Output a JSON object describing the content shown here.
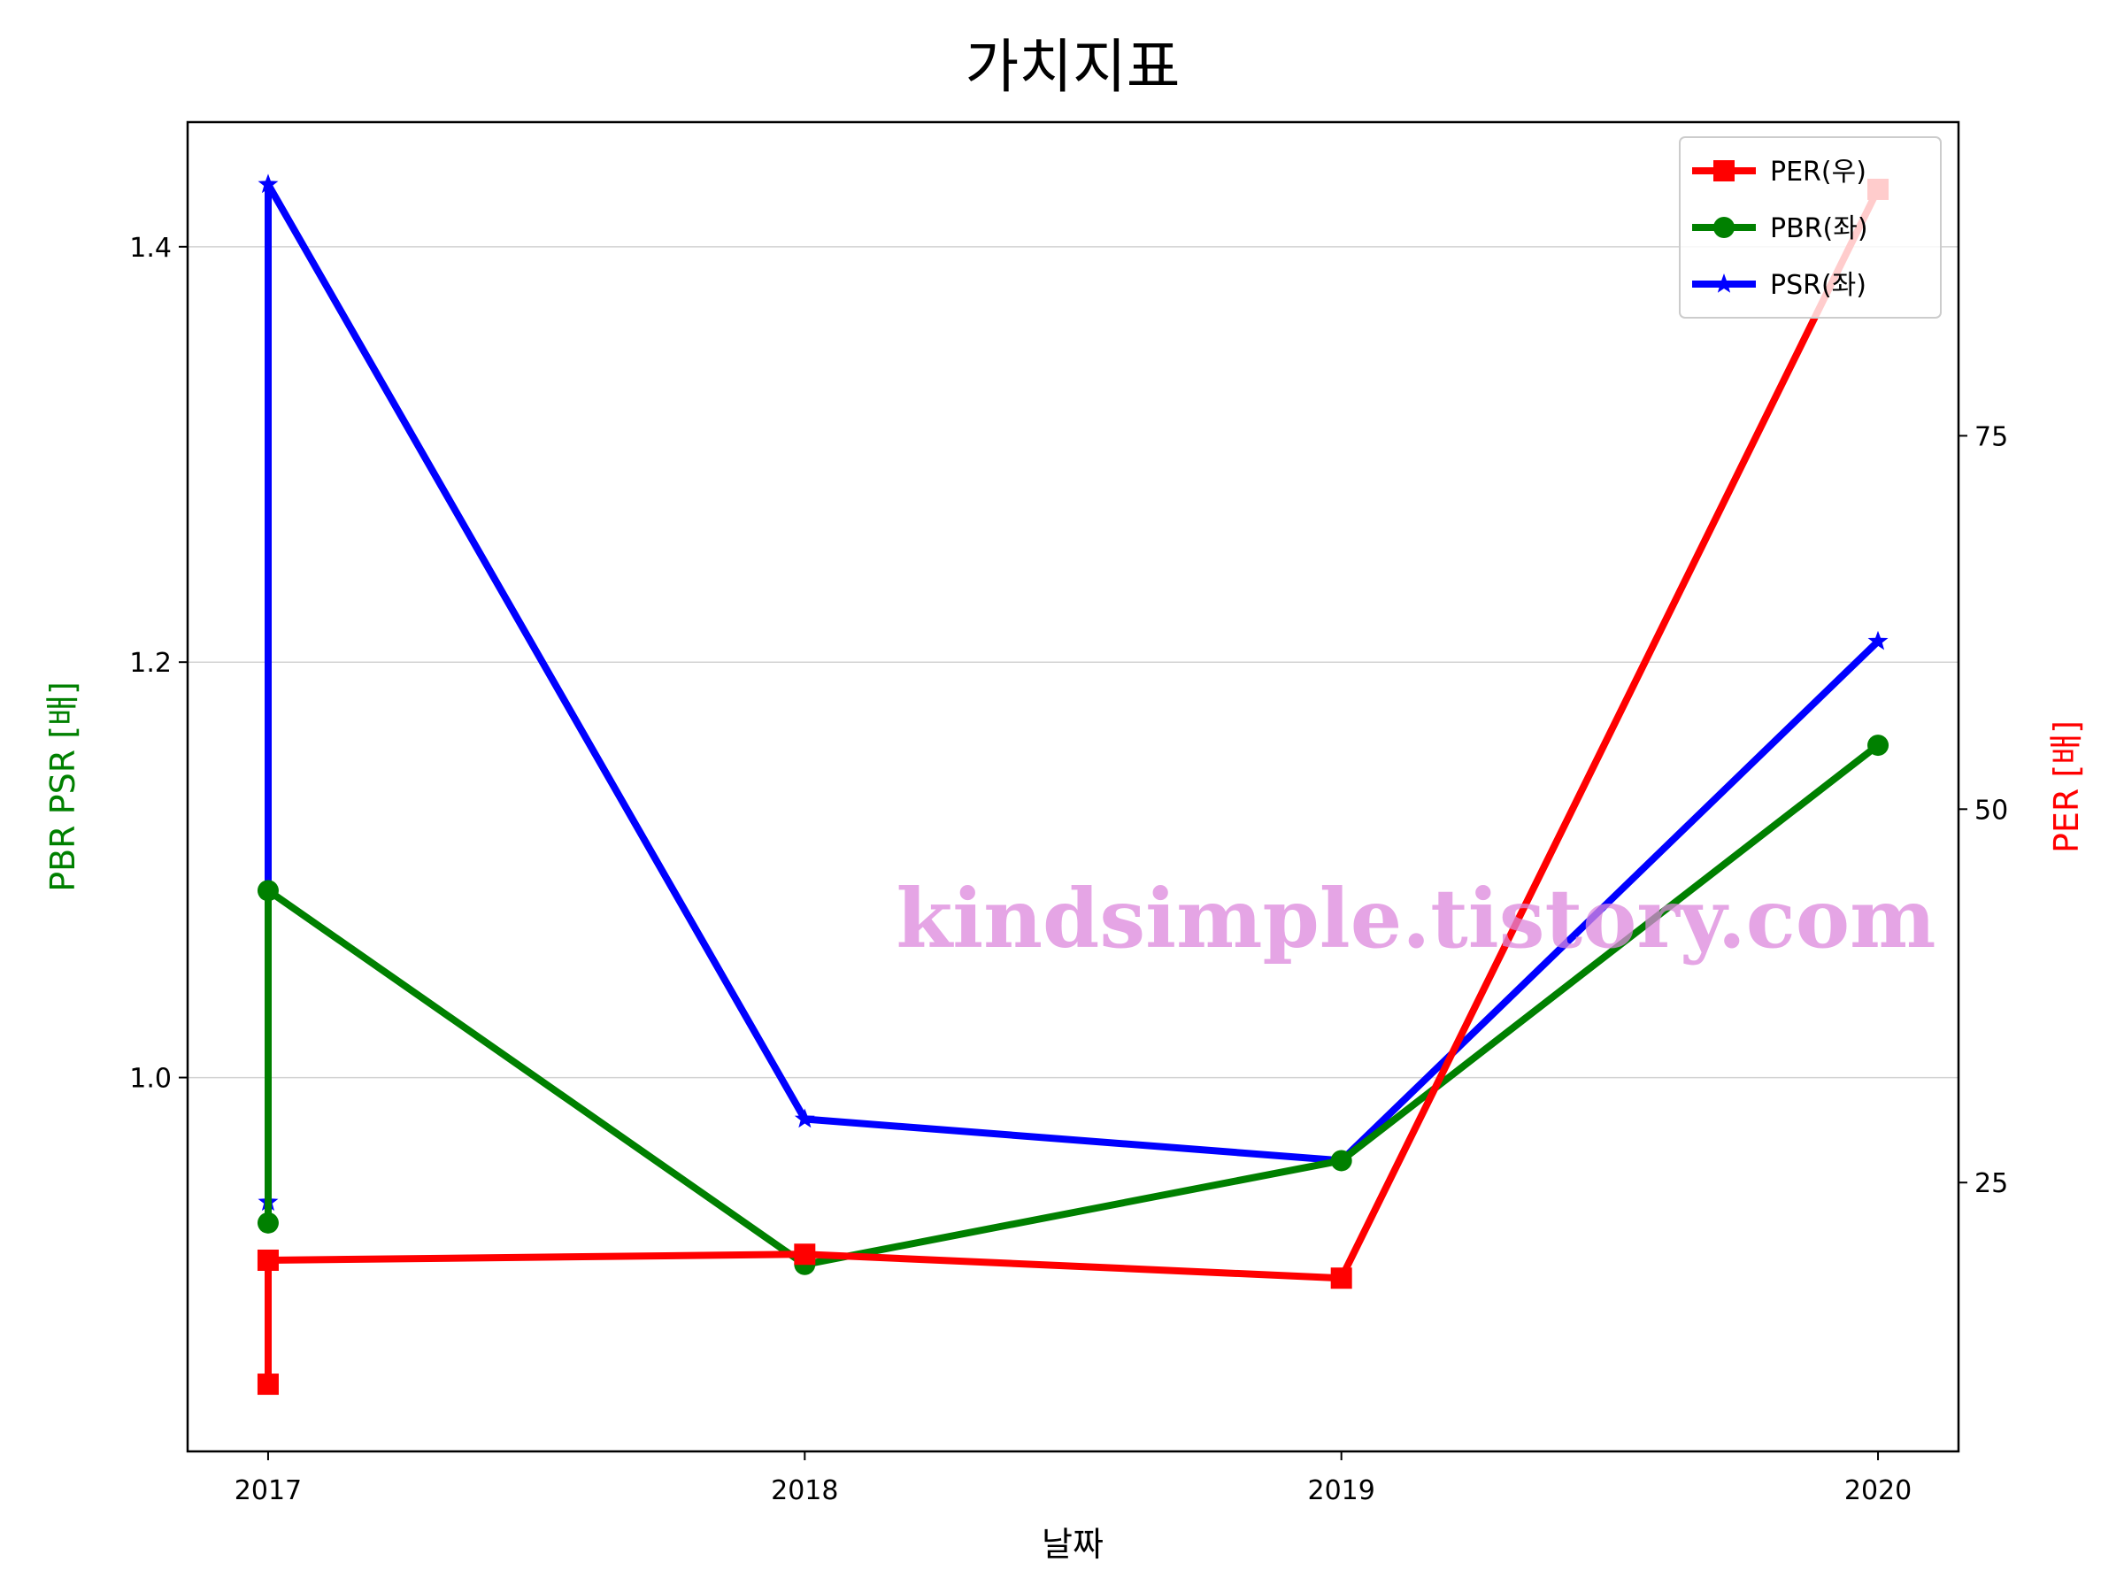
{
  "chart_data": {
    "type": "line",
    "title": "가치지표",
    "xlabel": "날짜",
    "ylabel_left": "PBR PSR [배]",
    "ylabel_right": "PER [배]",
    "colors": {
      "PER": "#ff0000",
      "PBR": "#008000",
      "PSR": "#0000ff",
      "left_label": "#008000",
      "right_label": "#ff0000",
      "watermark": "#dd88dd"
    },
    "x_ticks": [
      "2017",
      "2018",
      "2019",
      "2020"
    ],
    "xlim": [
      2016.85,
      2020.15
    ],
    "ylim_left": [
      0.82,
      1.46
    ],
    "ylim_right": [
      7,
      96
    ],
    "yticks_left": [
      1.0,
      1.2,
      1.4
    ],
    "yticks_left_labels": [
      "1.0",
      "1.2",
      "1.4"
    ],
    "yticks_right": [
      25,
      50,
      75
    ],
    "yticks_right_labels": [
      "25",
      "50",
      "75"
    ],
    "grid": "horizontal lines at left-axis ticks",
    "legend_position": "top-right",
    "series": [
      {
        "name": "PER(우)",
        "axis": "right",
        "marker": "square",
        "x": [
          2017,
          2017,
          2018,
          2019,
          2020
        ],
        "y": [
          11.5,
          19.8,
          20.2,
          18.6,
          91.5
        ]
      },
      {
        "name": "PBR(좌)",
        "axis": "left",
        "marker": "circle",
        "x": [
          2017,
          2017,
          2018,
          2019,
          2020
        ],
        "y": [
          0.93,
          1.09,
          0.91,
          0.96,
          1.16
        ]
      },
      {
        "name": "PSR(좌)",
        "axis": "left",
        "marker": "star",
        "x": [
          2017,
          2017,
          2018,
          2019,
          2020
        ],
        "y": [
          0.94,
          1.43,
          0.98,
          0.96,
          1.21
        ]
      }
    ],
    "watermark": "kindsimple.tistory.com"
  }
}
